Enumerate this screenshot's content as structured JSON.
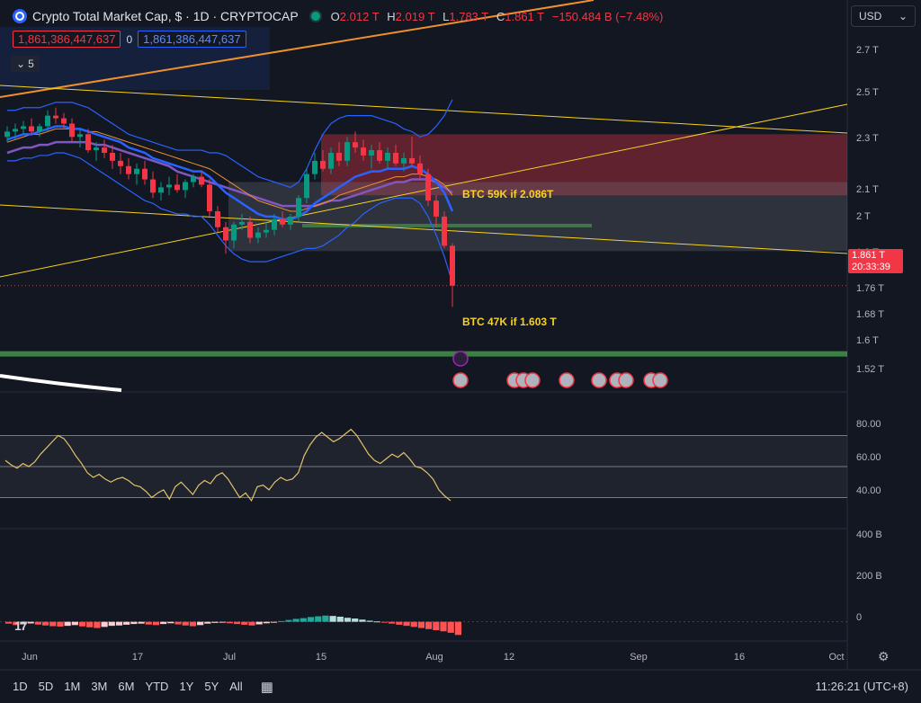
{
  "header": {
    "title": "Crypto Total Market Cap, $ · 1D · CRYPTOCAP",
    "ohlc": [
      {
        "label": "O",
        "value": "2.012 T"
      },
      {
        "label": "H",
        "value": "2.019 T"
      },
      {
        "label": "L",
        "value": "1.783 T"
      },
      {
        "label": "C",
        "value": "1.861 T"
      }
    ],
    "change": "−150.484 B (−7.48%)",
    "sell_value": "1,861,386,447,637",
    "spread": "0",
    "buy_value": "1,861,386,447,637",
    "indicator_count": "5"
  },
  "currency": "USD",
  "annotations": {
    "upper": "BTC 59K if 2.086T",
    "lower": "BTC 47K if 1.603 T"
  },
  "price_tag": {
    "price": "1.861 T",
    "countdown": "20:33:39"
  },
  "timeframes": [
    "1D",
    "5D",
    "1M",
    "3M",
    "6M",
    "YTD",
    "1Y",
    "5Y",
    "All"
  ],
  "clock": "11:26:21 (UTC+8)",
  "colors": {
    "bg": "#131722",
    "up": "#089981",
    "down": "#f23645",
    "accent": "#2962ff",
    "yellow": "#f7d21e",
    "rsi_line": "#e3c268"
  },
  "chart_data": [
    {
      "type": "candlestick",
      "panel": "price",
      "y_ticks": [
        "2.7 T",
        "2.5 T",
        "2.3 T",
        "2.1 T",
        "2 T",
        "1.9 T",
        "1.76 T",
        "1.68 T",
        "1.6 T",
        "1.52 T"
      ],
      "x_ticks": [
        "Jun",
        "17",
        "Jul",
        "15",
        "Aug",
        "12",
        "Sep",
        "16",
        "Oct"
      ],
      "ohlc": [
        [
          2.42,
          2.46,
          2.4,
          2.44
        ],
        [
          2.44,
          2.47,
          2.41,
          2.45
        ],
        [
          2.45,
          2.48,
          2.43,
          2.46
        ],
        [
          2.46,
          2.49,
          2.43,
          2.44
        ],
        [
          2.44,
          2.47,
          2.42,
          2.46
        ],
        [
          2.46,
          2.52,
          2.44,
          2.5
        ],
        [
          2.5,
          2.53,
          2.47,
          2.49
        ],
        [
          2.49,
          2.51,
          2.45,
          2.47
        ],
        [
          2.47,
          2.49,
          2.4,
          2.42
        ],
        [
          2.42,
          2.45,
          2.38,
          2.43
        ],
        [
          2.43,
          2.45,
          2.36,
          2.37
        ],
        [
          2.37,
          2.4,
          2.33,
          2.38
        ],
        [
          2.38,
          2.41,
          2.34,
          2.36
        ],
        [
          2.36,
          2.39,
          2.3,
          2.33
        ],
        [
          2.33,
          2.36,
          2.28,
          2.31
        ],
        [
          2.31,
          2.34,
          2.26,
          2.28
        ],
        [
          2.28,
          2.32,
          2.24,
          2.3
        ],
        [
          2.3,
          2.33,
          2.24,
          2.26
        ],
        [
          2.26,
          2.29,
          2.19,
          2.21
        ],
        [
          2.21,
          2.25,
          2.18,
          2.23
        ],
        [
          2.23,
          2.27,
          2.2,
          2.24
        ],
        [
          2.24,
          2.28,
          2.21,
          2.22
        ],
        [
          2.22,
          2.26,
          2.19,
          2.25
        ],
        [
          2.25,
          2.28,
          2.23,
          2.27
        ],
        [
          2.27,
          2.29,
          2.23,
          2.24
        ],
        [
          2.24,
          2.26,
          2.12,
          2.14
        ],
        [
          2.14,
          2.16,
          2.06,
          2.08
        ],
        [
          2.08,
          2.1,
          1.98,
          2.03
        ],
        [
          2.03,
          2.1,
          2.0,
          2.09
        ],
        [
          2.09,
          2.13,
          2.07,
          2.1
        ],
        [
          2.1,
          2.12,
          2.02,
          2.04
        ],
        [
          2.04,
          2.08,
          2.02,
          2.06
        ],
        [
          2.06,
          2.1,
          2.04,
          2.07
        ],
        [
          2.07,
          2.13,
          2.05,
          2.11
        ],
        [
          2.11,
          2.14,
          2.08,
          2.09
        ],
        [
          2.09,
          2.13,
          2.07,
          2.12
        ],
        [
          2.12,
          2.2,
          2.1,
          2.19
        ],
        [
          2.19,
          2.3,
          2.17,
          2.28
        ],
        [
          2.28,
          2.36,
          2.26,
          2.33
        ],
        [
          2.33,
          2.37,
          2.29,
          2.3
        ],
        [
          2.3,
          2.38,
          2.28,
          2.36
        ],
        [
          2.36,
          2.4,
          2.31,
          2.33
        ],
        [
          2.33,
          2.42,
          2.31,
          2.4
        ],
        [
          2.4,
          2.44,
          2.36,
          2.38
        ],
        [
          2.38,
          2.41,
          2.33,
          2.35
        ],
        [
          2.35,
          2.39,
          2.3,
          2.37
        ],
        [
          2.37,
          2.4,
          2.32,
          2.33
        ],
        [
          2.33,
          2.38,
          2.3,
          2.36
        ],
        [
          2.36,
          2.39,
          2.31,
          2.32
        ],
        [
          2.32,
          2.36,
          2.29,
          2.34
        ],
        [
          2.34,
          2.42,
          2.31,
          2.32
        ],
        [
          2.32,
          2.35,
          2.26,
          2.28
        ],
        [
          2.28,
          2.3,
          2.16,
          2.18
        ],
        [
          2.18,
          2.2,
          2.08,
          2.12
        ],
        [
          2.12,
          2.14,
          2.0,
          2.01
        ],
        [
          2.01,
          2.02,
          1.78,
          1.86
        ]
      ],
      "ema_fast": [
        2.41,
        2.42,
        2.43,
        2.43,
        2.44,
        2.45,
        2.46,
        2.46,
        2.45,
        2.45,
        2.44,
        2.43,
        2.42,
        2.41,
        2.4,
        2.38,
        2.37,
        2.36,
        2.34,
        2.33,
        2.32,
        2.31,
        2.3,
        2.29,
        2.29,
        2.27,
        2.24,
        2.21,
        2.19,
        2.17,
        2.15,
        2.13,
        2.12,
        2.12,
        2.11,
        2.11,
        2.12,
        2.14,
        2.17,
        2.19,
        2.21,
        2.23,
        2.25,
        2.27,
        2.28,
        2.29,
        2.29,
        2.3,
        2.3,
        2.3,
        2.31,
        2.3,
        2.28,
        2.25,
        2.21,
        2.14
      ],
      "ema_mid": [
        2.4,
        2.41,
        2.42,
        2.43,
        2.43,
        2.44,
        2.45,
        2.45,
        2.45,
        2.45,
        2.44,
        2.44,
        2.43,
        2.42,
        2.41,
        2.4,
        2.39,
        2.38,
        2.37,
        2.36,
        2.35,
        2.34,
        2.33,
        2.32,
        2.31,
        2.3,
        2.28,
        2.26,
        2.24,
        2.22,
        2.2,
        2.18,
        2.17,
        2.16,
        2.15,
        2.14,
        2.14,
        2.15,
        2.16,
        2.17,
        2.18,
        2.2,
        2.21,
        2.22,
        2.23,
        2.24,
        2.25,
        2.26,
        2.27,
        2.27,
        2.28,
        2.28,
        2.27,
        2.26,
        2.24,
        2.2
      ],
      "ema_slow": [
        2.36,
        2.37,
        2.38,
        2.38,
        2.39,
        2.39,
        2.4,
        2.4,
        2.4,
        2.4,
        2.4,
        2.39,
        2.39,
        2.38,
        2.37,
        2.36,
        2.35,
        2.34,
        2.33,
        2.32,
        2.31,
        2.29,
        2.28,
        2.27,
        2.26,
        2.25,
        2.24,
        2.23,
        2.22,
        2.21,
        2.2,
        2.19,
        2.18,
        2.17,
        2.16,
        2.16,
        2.16,
        2.16,
        2.16,
        2.17,
        2.18,
        2.18,
        2.19,
        2.2,
        2.21,
        2.22,
        2.23,
        2.24,
        2.25,
        2.25,
        2.26,
        2.26,
        2.26,
        2.25,
        2.23,
        2.21
      ],
      "bb_upper": [
        2.52,
        2.52,
        2.53,
        2.53,
        2.53,
        2.54,
        2.55,
        2.55,
        2.55,
        2.54,
        2.53,
        2.51,
        2.49,
        2.47,
        2.45,
        2.43,
        2.42,
        2.41,
        2.4,
        2.39,
        2.38,
        2.37,
        2.37,
        2.37,
        2.37,
        2.36,
        2.36,
        2.35,
        2.33,
        2.31,
        2.29,
        2.27,
        2.26,
        2.25,
        2.24,
        2.23,
        2.25,
        2.3,
        2.37,
        2.43,
        2.47,
        2.49,
        2.5,
        2.5,
        2.5,
        2.5,
        2.49,
        2.48,
        2.47,
        2.45,
        2.44,
        2.42,
        2.43,
        2.46,
        2.5,
        2.56
      ],
      "bb_lower": [
        2.33,
        2.33,
        2.34,
        2.34,
        2.35,
        2.35,
        2.36,
        2.36,
        2.35,
        2.34,
        2.32,
        2.3,
        2.28,
        2.26,
        2.24,
        2.22,
        2.2,
        2.18,
        2.17,
        2.15,
        2.14,
        2.13,
        2.13,
        2.12,
        2.12,
        2.09,
        2.05,
        2.01,
        1.98,
        1.96,
        1.95,
        1.95,
        1.95,
        1.96,
        1.97,
        1.98,
        1.99,
        2.0,
        2.0,
        2.01,
        2.03,
        2.05,
        2.08,
        2.1,
        2.13,
        2.15,
        2.17,
        2.18,
        2.19,
        2.19,
        2.19,
        2.17,
        2.12,
        2.05,
        1.97,
        1.87
      ],
      "horizontal_levels": [
        {
          "name": "BTC 59K if 2.086T",
          "value": 2.086
        },
        {
          "name": "BTC 47K if 1.603 T",
          "value": 1.603
        }
      ],
      "ylim": [
        1.48,
        2.8
      ]
    },
    {
      "type": "line",
      "panel": "rsi",
      "y_ticks": [
        "80.00",
        "60.00",
        "40.00"
      ],
      "bands": [
        70,
        50,
        30
      ],
      "values": [
        54,
        51,
        49,
        52,
        50,
        53,
        58,
        62,
        66,
        70,
        68,
        63,
        57,
        52,
        46,
        43,
        45,
        42,
        40,
        42,
        43,
        41,
        38,
        37,
        34,
        30,
        33,
        35,
        29,
        37,
        40,
        36,
        32,
        38,
        41,
        39,
        44,
        46,
        42,
        36,
        30,
        33,
        28,
        37,
        38,
        35,
        40,
        43,
        41,
        42,
        46,
        57,
        64,
        69,
        72,
        69,
        66,
        68,
        71,
        74,
        70,
        64,
        58,
        54,
        52,
        55,
        58,
        56,
        59,
        55,
        50,
        49,
        46,
        42,
        35,
        31,
        28
      ],
      "ylim": [
        10,
        90
      ]
    },
    {
      "type": "bar",
      "panel": "macd",
      "y_ticks": [
        "400 B",
        "200 B",
        "0"
      ],
      "histogram": [
        -10,
        -18,
        -14,
        -9,
        -15,
        -20,
        -24,
        -26,
        -22,
        -18,
        -25,
        -30,
        -34,
        -28,
        -22,
        -20,
        -16,
        -12,
        -10,
        -15,
        -18,
        -12,
        -8,
        -14,
        -20,
        -24,
        -18,
        -10,
        -6,
        -4,
        -8,
        -12,
        -16,
        -20,
        -14,
        -8,
        -2,
        4,
        10,
        16,
        20,
        26,
        30,
        34,
        32,
        28,
        22,
        18,
        12,
        6,
        2,
        -4,
        -10,
        -16,
        -22,
        -28,
        -34,
        -40,
        -46,
        -52,
        -60,
        -72
      ],
      "ylim": [
        -100,
        500
      ]
    }
  ]
}
